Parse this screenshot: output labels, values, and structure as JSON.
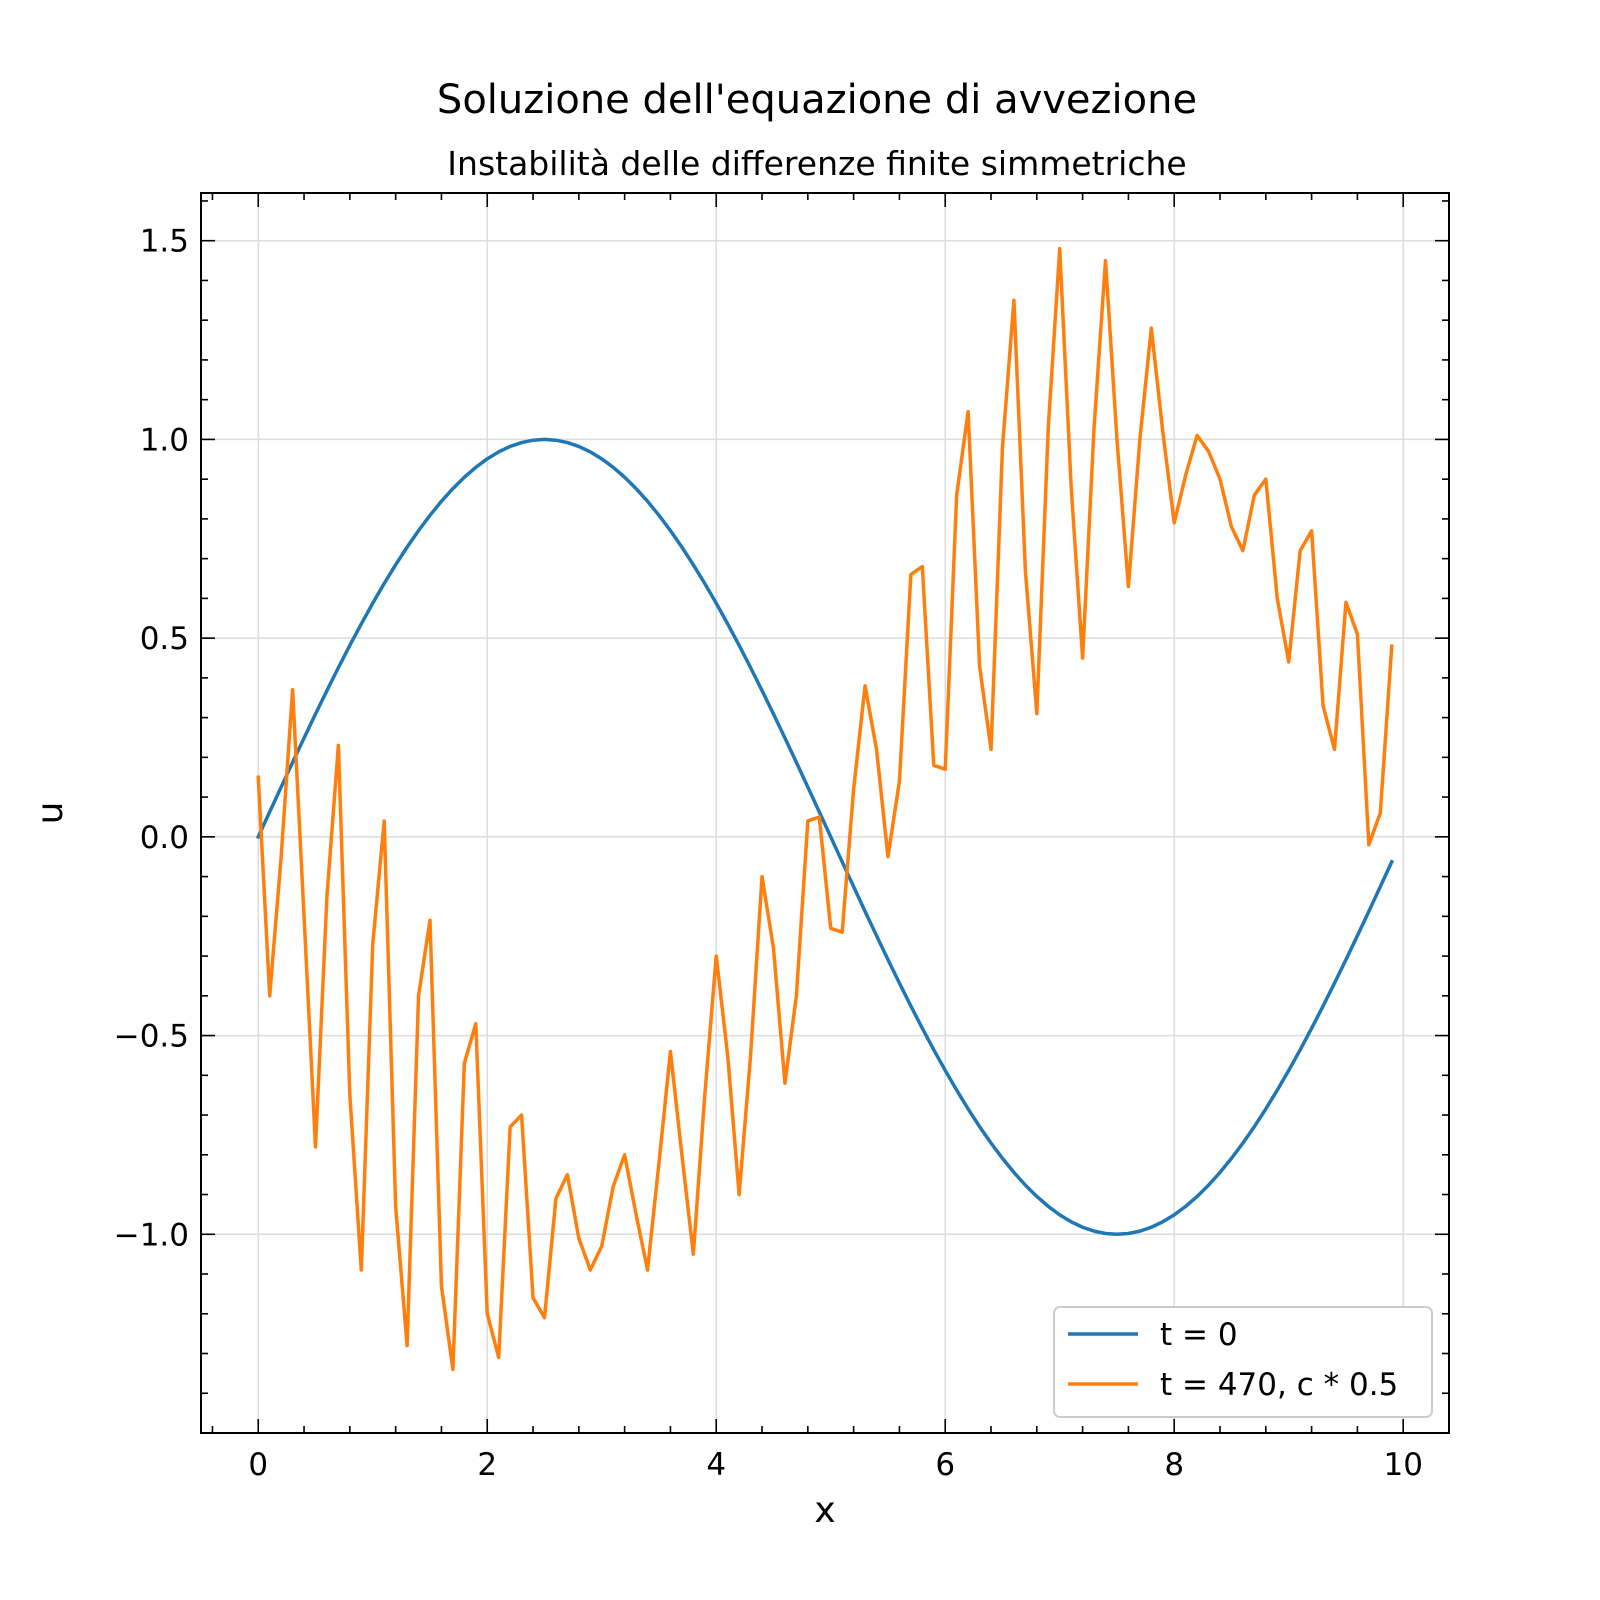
{
  "chart_data": {
    "type": "line",
    "title": "Soluzione dell'equazione di avvezione",
    "subtitle": "Instabilità delle differenze finite simmetriche",
    "xlabel": "x",
    "ylabel": "u",
    "xlim": [
      -0.5,
      10.4
    ],
    "ylim": [
      -1.5,
      1.62
    ],
    "grid": true,
    "legend_position": "lower-right",
    "x_ticks": [
      0,
      2,
      4,
      6,
      8,
      10
    ],
    "x_tick_labels": [
      "0",
      "2",
      "4",
      "6",
      "8",
      "10"
    ],
    "y_ticks": [
      -1.0,
      -0.5,
      0.0,
      0.5,
      1.0,
      1.5
    ],
    "y_tick_labels": [
      "−1.0",
      "−0.5",
      "0.0",
      "0.5",
      "1.0",
      "1.5"
    ],
    "x": [
      0.0,
      0.1,
      0.2,
      0.3,
      0.4,
      0.5,
      0.6,
      0.7,
      0.8,
      0.9,
      1.0,
      1.1,
      1.2,
      1.3,
      1.4,
      1.5,
      1.6,
      1.7,
      1.8,
      1.9,
      2.0,
      2.1,
      2.2,
      2.3,
      2.4,
      2.5,
      2.6,
      2.7,
      2.8,
      2.9,
      3.0,
      3.1,
      3.2,
      3.3,
      3.4,
      3.5,
      3.6,
      3.7,
      3.8,
      3.9,
      4.0,
      4.1,
      4.2,
      4.3,
      4.4,
      4.5,
      4.6,
      4.7,
      4.8,
      4.9,
      5.0,
      5.1,
      5.2,
      5.3,
      5.4,
      5.5,
      5.6,
      5.7,
      5.8,
      5.9,
      6.0,
      6.1,
      6.2,
      6.3,
      6.4,
      6.5,
      6.6,
      6.7,
      6.8,
      6.9,
      7.0,
      7.1,
      7.2,
      7.3,
      7.4,
      7.5,
      7.6,
      7.7,
      7.8,
      7.9,
      8.0,
      8.1,
      8.2,
      8.3,
      8.4,
      8.5,
      8.6,
      8.7,
      8.8,
      8.9,
      9.0,
      9.1,
      9.2,
      9.3,
      9.4,
      9.5,
      9.6,
      9.7,
      9.8,
      9.9
    ],
    "series": [
      {
        "name": "t = 0",
        "color": "#1f77b4",
        "values": [
          0.0,
          0.0628,
          0.1253,
          0.1874,
          0.2487,
          0.309,
          0.3681,
          0.4258,
          0.4818,
          0.5358,
          0.5878,
          0.6374,
          0.6845,
          0.729,
          0.7705,
          0.809,
          0.8443,
          0.8763,
          0.9048,
          0.9298,
          0.9511,
          0.9686,
          0.9823,
          0.9921,
          0.998,
          1.0,
          0.998,
          0.9921,
          0.9823,
          0.9686,
          0.9511,
          0.9298,
          0.9048,
          0.8763,
          0.8443,
          0.809,
          0.7705,
          0.729,
          0.6845,
          0.6374,
          0.5878,
          0.5358,
          0.4818,
          0.4258,
          0.3681,
          0.309,
          0.2487,
          0.1874,
          0.1253,
          0.0628,
          0.0,
          -0.0628,
          -0.1253,
          -0.1874,
          -0.2487,
          -0.309,
          -0.3681,
          -0.4258,
          -0.4818,
          -0.5358,
          -0.5878,
          -0.6374,
          -0.6845,
          -0.729,
          -0.7705,
          -0.809,
          -0.8443,
          -0.8763,
          -0.9048,
          -0.9298,
          -0.9511,
          -0.9686,
          -0.9823,
          -0.9921,
          -0.998,
          -1.0,
          -0.998,
          -0.9921,
          -0.9823,
          -0.9686,
          -0.9511,
          -0.9298,
          -0.9048,
          -0.8763,
          -0.8443,
          -0.809,
          -0.7705,
          -0.729,
          -0.6845,
          -0.6374,
          -0.5878,
          -0.5358,
          -0.4818,
          -0.4258,
          -0.3681,
          -0.309,
          -0.2487,
          -0.1874,
          -0.1253,
          -0.0628
        ]
      },
      {
        "name": "t = 470, c * 0.5",
        "color": "#ff7f0e",
        "values": [
          0.15,
          -0.4,
          -0.05,
          0.37,
          -0.2,
          -0.78,
          -0.15,
          0.23,
          -0.65,
          -1.09,
          -0.27,
          0.04,
          -0.93,
          -1.28,
          -0.4,
          -0.21,
          -1.13,
          -1.34,
          -0.57,
          -0.47,
          -1.2,
          -1.31,
          -0.73,
          -0.7,
          -1.16,
          -1.21,
          -0.91,
          -0.85,
          -1.01,
          -1.09,
          -1.03,
          -0.88,
          -0.8,
          -0.95,
          -1.09,
          -0.82,
          -0.54,
          -0.8,
          -1.05,
          -0.65,
          -0.3,
          -0.55,
          -0.9,
          -0.55,
          -0.1,
          -0.28,
          -0.62,
          -0.4,
          0.04,
          0.05,
          -0.23,
          -0.24,
          0.12,
          0.38,
          0.22,
          -0.05,
          0.14,
          0.66,
          0.68,
          0.18,
          0.17,
          0.86,
          1.07,
          0.43,
          0.22,
          0.98,
          1.35,
          0.67,
          0.31,
          1.03,
          1.48,
          0.88,
          0.45,
          1.03,
          1.45,
          1.0,
          0.63,
          1.0,
          1.28,
          1.02,
          0.79,
          0.91,
          1.01,
          0.97,
          0.9,
          0.78,
          0.72,
          0.86,
          0.9,
          0.6,
          0.44,
          0.72,
          0.77,
          0.33,
          0.22,
          0.59,
          0.51,
          -0.02,
          0.06,
          0.48
        ]
      }
    ]
  }
}
